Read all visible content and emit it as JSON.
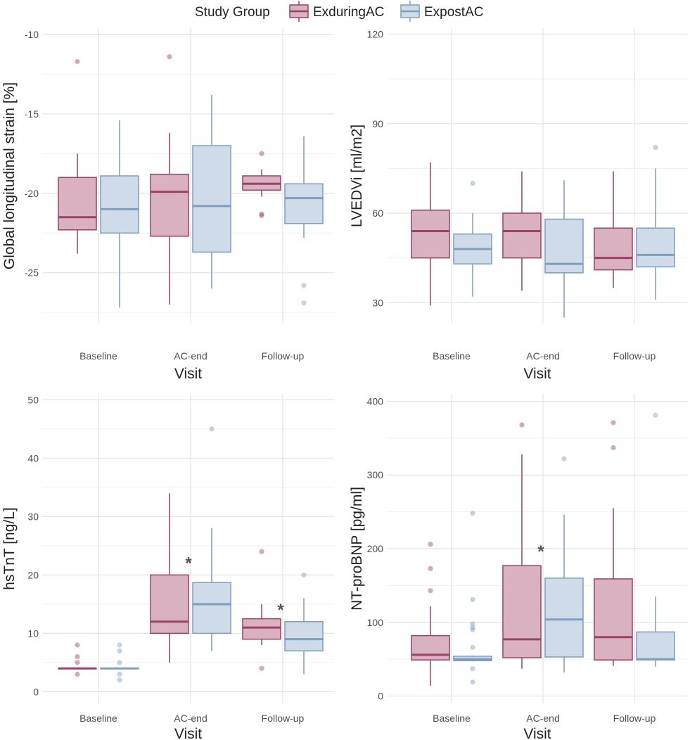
{
  "legend": {
    "title": "Study Group",
    "items": [
      {
        "label": "ExduringAC",
        "stroke": "#9b4266",
        "fill": "#d9b1c1"
      },
      {
        "label": "ExpostAC",
        "stroke": "#7d9ec0",
        "fill": "#cfdbe8"
      }
    ]
  },
  "chart_data": [
    {
      "type": "boxplot",
      "id": "gls",
      "ylabel": "Global longitudinal strain [%]",
      "xlabel": "Visit",
      "categories": [
        "Baseline",
        "AC-end",
        "Follow-up"
      ],
      "ylim": [
        -28.2,
        -9.6
      ],
      "yticks": [
        -25,
        -20,
        -15,
        -10
      ],
      "grid": true,
      "series": [
        {
          "name": "ExduringAC",
          "boxes": [
            {
              "lw": -23.8,
              "q1": -22.3,
              "med": -21.5,
              "q3": -19.0,
              "uw": -17.5,
              "outliers": [
                -11.7
              ]
            },
            {
              "lw": -27.0,
              "q1": -22.7,
              "med": -19.9,
              "q3": -18.8,
              "uw": -16.2,
              "outliers": [
                -11.4
              ]
            },
            {
              "lw": -20.2,
              "q1": -19.8,
              "med": -19.4,
              "q3": -18.9,
              "uw": -18.5,
              "outliers": [
                -17.5,
                -21.3,
                -21.4
              ]
            }
          ]
        },
        {
          "name": "ExpostAC",
          "boxes": [
            {
              "lw": -27.2,
              "q1": -22.5,
              "med": -21.0,
              "q3": -18.9,
              "uw": -15.4,
              "outliers": []
            },
            {
              "lw": -26.0,
              "q1": -23.7,
              "med": -20.8,
              "q3": -17.0,
              "uw": -13.8,
              "outliers": []
            },
            {
              "lw": -22.8,
              "q1": -21.9,
              "med": -20.3,
              "q3": -19.4,
              "uw": -16.4,
              "outliers": [
                -25.8,
                -26.9
              ]
            }
          ]
        }
      ],
      "annotations": []
    },
    {
      "type": "boxplot",
      "id": "lvedvi",
      "ylabel": "LVEDVi [ml/m2]",
      "xlabel": "Visit",
      "categories": [
        "Baseline",
        "AC-end",
        "Follow-up"
      ],
      "ylim": [
        23,
        122
      ],
      "yticks": [
        30,
        60,
        90,
        120
      ],
      "grid": true,
      "series": [
        {
          "name": "ExduringAC",
          "boxes": [
            {
              "lw": 29,
              "q1": 45,
              "med": 54,
              "q3": 61,
              "uw": 77,
              "outliers": []
            },
            {
              "lw": 34,
              "q1": 45,
              "med": 54,
              "q3": 60,
              "uw": 74,
              "outliers": []
            },
            {
              "lw": 35,
              "q1": 41,
              "med": 45,
              "q3": 55,
              "uw": 74,
              "outliers": []
            }
          ]
        },
        {
          "name": "ExpostAC",
          "boxes": [
            {
              "lw": 32,
              "q1": 43,
              "med": 48,
              "q3": 53,
              "uw": 60,
              "outliers": [
                70
              ]
            },
            {
              "lw": 25,
              "q1": 40,
              "med": 43,
              "q3": 58,
              "uw": 71,
              "outliers": []
            },
            {
              "lw": 31,
              "q1": 42,
              "med": 46,
              "q3": 55,
              "uw": 75,
              "outliers": [
                82
              ]
            }
          ]
        }
      ],
      "annotations": []
    },
    {
      "type": "boxplot",
      "id": "hstnt",
      "ylabel": "hsTnT [ng/L]",
      "xlabel": "Visit",
      "categories": [
        "Baseline",
        "AC-end",
        "Follow-up"
      ],
      "ylim": [
        -2,
        51
      ],
      "yticks": [
        0,
        10,
        20,
        30,
        40,
        50
      ],
      "grid": true,
      "series": [
        {
          "name": "ExduringAC",
          "boxes": [
            {
              "lw": 4,
              "q1": 4,
              "med": 4,
              "q3": 4,
              "uw": 4,
              "outliers": [
                3,
                5,
                6,
                8
              ]
            },
            {
              "lw": 5,
              "q1": 10,
              "med": 12,
              "q3": 20,
              "uw": 34,
              "outliers": []
            },
            {
              "lw": 8,
              "q1": 9,
              "med": 11,
              "q3": 12.5,
              "uw": 15,
              "outliers": [
                4,
                24
              ]
            }
          ]
        },
        {
          "name": "ExpostAC",
          "boxes": [
            {
              "lw": 4,
              "q1": 4,
              "med": 4,
              "q3": 4,
              "uw": 4,
              "outliers": [
                2,
                3,
                5,
                7,
                8
              ]
            },
            {
              "lw": 7,
              "q1": 10,
              "med": 15,
              "q3": 18.7,
              "uw": 28,
              "outliers": [
                45
              ]
            },
            {
              "lw": 3,
              "q1": 7,
              "med": 9,
              "q3": 12,
              "uw": 16,
              "outliers": [
                20
              ]
            }
          ]
        }
      ],
      "annotations": [
        {
          "text": "*",
          "category": 1,
          "y": 22.5
        },
        {
          "text": "*",
          "category": 2,
          "y": 14.5
        }
      ]
    },
    {
      "type": "boxplot",
      "id": "ntprobnp",
      "ylabel": "NT-proBNP [pg/ml]",
      "xlabel": "Visit",
      "categories": [
        "Baseline",
        "AC-end",
        "Follow-up"
      ],
      "ylim": [
        -10,
        410
      ],
      "yticks": [
        0,
        100,
        200,
        300,
        400
      ],
      "grid": true,
      "series": [
        {
          "name": "ExduringAC",
          "boxes": [
            {
              "lw": 14,
              "q1": 49,
              "med": 56,
              "q3": 82,
              "uw": 122,
              "outliers": [
                143,
                173,
                206
              ]
            },
            {
              "lw": 37,
              "q1": 52,
              "med": 77,
              "q3": 177,
              "uw": 328,
              "outliers": [
                368
              ]
            },
            {
              "lw": 41,
              "q1": 49,
              "med": 80,
              "q3": 159,
              "uw": 255,
              "outliers": [
                337,
                371
              ]
            }
          ]
        },
        {
          "name": "ExpostAC",
          "boxes": [
            {
              "lw": 47,
              "q1": 48,
              "med": 50,
              "q3": 54,
              "uw": 55,
              "outliers": [
                19,
                37,
                66,
                90,
                93,
                98,
                131,
                248
              ]
            },
            {
              "lw": 32,
              "q1": 53,
              "med": 104,
              "q3": 160,
              "uw": 246,
              "outliers": [
                322
              ]
            },
            {
              "lw": 40,
              "q1": 49,
              "med": 50,
              "q3": 87,
              "uw": 135,
              "outliers": [
                381
              ]
            }
          ]
        }
      ],
      "annotations": [
        {
          "text": "*",
          "category": 1,
          "y": 200
        }
      ]
    }
  ]
}
